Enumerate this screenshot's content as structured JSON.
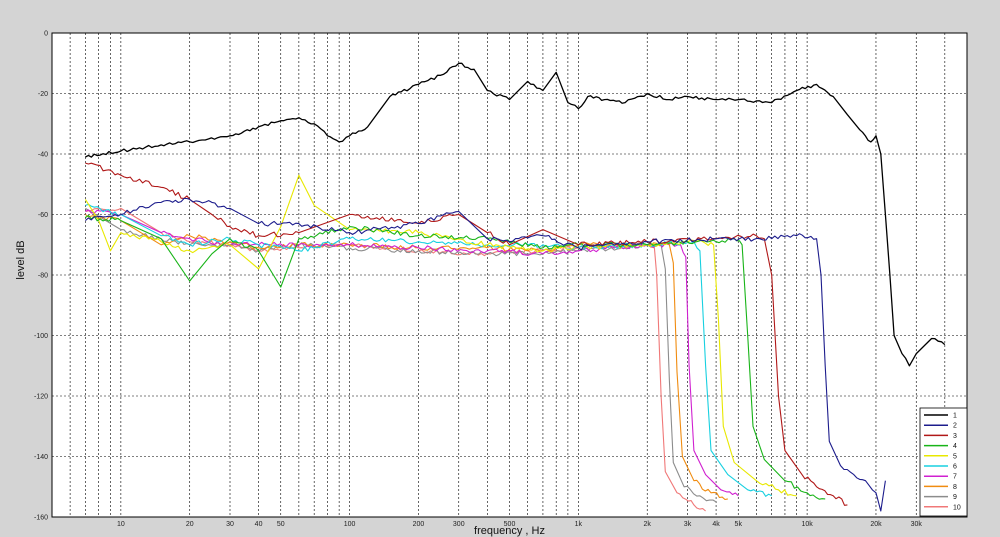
{
  "chart_data": {
    "type": "line",
    "title": "",
    "xlabel": "frequency , Hz",
    "ylabel": "level dB",
    "x_scale": "log",
    "xlim": [
      5,
      50000
    ],
    "ylim": [
      -160,
      0
    ],
    "grid": true,
    "legend_position": "bottom-right",
    "x_ticks": [
      {
        "value": 10,
        "label": "10"
      },
      {
        "value": 20,
        "label": "20"
      },
      {
        "value": 30,
        "label": "30"
      },
      {
        "value": 40,
        "label": "40"
      },
      {
        "value": 50,
        "label": "50"
      },
      {
        "value": 100,
        "label": "100"
      },
      {
        "value": 200,
        "label": "200"
      },
      {
        "value": 300,
        "label": "300"
      },
      {
        "value": 500,
        "label": "500"
      },
      {
        "value": 1000,
        "label": "1k"
      },
      {
        "value": 2000,
        "label": "2k"
      },
      {
        "value": 3000,
        "label": "3k"
      },
      {
        "value": 4000,
        "label": "4k"
      },
      {
        "value": 5000,
        "label": "5k"
      },
      {
        "value": 10000,
        "label": "10k"
      },
      {
        "value": 20000,
        "label": "20k"
      },
      {
        "value": 30000,
        "label": "30k"
      }
    ],
    "y_ticks": [
      {
        "value": 0,
        "label": "0"
      },
      {
        "value": -20,
        "label": "-20"
      },
      {
        "value": -40,
        "label": "-40"
      },
      {
        "value": -60,
        "label": "-60"
      },
      {
        "value": -80,
        "label": "-80"
      },
      {
        "value": -100,
        "label": "-100"
      },
      {
        "value": -120,
        "label": "-120"
      },
      {
        "value": -140,
        "label": "-140"
      },
      {
        "value": -160,
        "label": "-160"
      }
    ],
    "series": [
      {
        "name": "1",
        "color": "#000000",
        "points": [
          [
            7,
            -41
          ],
          [
            10,
            -39
          ],
          [
            15,
            -37
          ],
          [
            20,
            -36
          ],
          [
            30,
            -34
          ],
          [
            40,
            -31
          ],
          [
            50,
            -29
          ],
          [
            60,
            -28
          ],
          [
            70,
            -30
          ],
          [
            80,
            -34
          ],
          [
            90,
            -36
          ],
          [
            100,
            -34
          ],
          [
            120,
            -31
          ],
          [
            150,
            -21
          ],
          [
            200,
            -17
          ],
          [
            250,
            -14
          ],
          [
            300,
            -10
          ],
          [
            350,
            -12
          ],
          [
            400,
            -19
          ],
          [
            500,
            -22
          ],
          [
            600,
            -16
          ],
          [
            700,
            -19
          ],
          [
            800,
            -13
          ],
          [
            900,
            -23
          ],
          [
            1000,
            -25
          ],
          [
            1100,
            -21
          ],
          [
            1300,
            -22
          ],
          [
            1600,
            -23
          ],
          [
            2000,
            -20
          ],
          [
            2500,
            -22
          ],
          [
            3000,
            -21
          ],
          [
            4000,
            -22
          ],
          [
            5000,
            -22
          ],
          [
            7000,
            -23
          ],
          [
            9000,
            -19
          ],
          [
            11000,
            -17
          ],
          [
            13000,
            -21
          ],
          [
            15000,
            -27
          ],
          [
            17000,
            -32
          ],
          [
            19000,
            -36
          ],
          [
            20000,
            -34
          ],
          [
            21000,
            -40
          ],
          [
            22000,
            -60
          ],
          [
            23000,
            -80
          ],
          [
            24000,
            -100
          ],
          [
            26000,
            -106
          ],
          [
            28000,
            -110
          ],
          [
            30000,
            -106
          ],
          [
            35000,
            -101
          ],
          [
            40000,
            -103
          ]
        ]
      },
      {
        "name": "2",
        "color": "#1c1c8c",
        "points": [
          [
            7,
            -62
          ],
          [
            10,
            -60
          ],
          [
            15,
            -56
          ],
          [
            20,
            -55
          ],
          [
            25,
            -56
          ],
          [
            30,
            -58
          ],
          [
            40,
            -63
          ],
          [
            60,
            -63
          ],
          [
            100,
            -66
          ],
          [
            200,
            -63
          ],
          [
            300,
            -59
          ],
          [
            400,
            -68
          ],
          [
            500,
            -69
          ],
          [
            700,
            -67
          ],
          [
            1000,
            -71
          ],
          [
            2000,
            -69
          ],
          [
            4000,
            -68
          ],
          [
            7000,
            -68
          ],
          [
            9000,
            -67
          ],
          [
            11000,
            -68
          ],
          [
            11500,
            -80
          ],
          [
            12000,
            -110
          ],
          [
            12500,
            -135
          ],
          [
            14000,
            -143
          ],
          [
            16000,
            -146
          ],
          [
            18000,
            -148
          ],
          [
            20000,
            -152
          ],
          [
            21000,
            -158
          ],
          [
            22000,
            -148
          ]
        ]
      },
      {
        "name": "3",
        "color": "#b01818",
        "points": [
          [
            7,
            -43
          ],
          [
            10,
            -47
          ],
          [
            15,
            -51
          ],
          [
            20,
            -55
          ],
          [
            25,
            -60
          ],
          [
            30,
            -64
          ],
          [
            40,
            -67
          ],
          [
            60,
            -66
          ],
          [
            100,
            -60
          ],
          [
            200,
            -63
          ],
          [
            300,
            -60
          ],
          [
            400,
            -66
          ],
          [
            500,
            -70
          ],
          [
            700,
            -65
          ],
          [
            1000,
            -70
          ],
          [
            2000,
            -69
          ],
          [
            4000,
            -68
          ],
          [
            6000,
            -67
          ],
          [
            6500,
            -68
          ],
          [
            7000,
            -80
          ],
          [
            7500,
            -120
          ],
          [
            8000,
            -138
          ],
          [
            9500,
            -146
          ],
          [
            11000,
            -150
          ],
          [
            13000,
            -153
          ],
          [
            15000,
            -156
          ]
        ]
      },
      {
        "name": "4",
        "color": "#18b418",
        "points": [
          [
            7,
            -61
          ],
          [
            10,
            -62
          ],
          [
            15,
            -68
          ],
          [
            20,
            -82
          ],
          [
            25,
            -73
          ],
          [
            30,
            -68
          ],
          [
            40,
            -72
          ],
          [
            50,
            -84
          ],
          [
            60,
            -68
          ],
          [
            100,
            -64
          ],
          [
            200,
            -67
          ],
          [
            400,
            -68
          ],
          [
            700,
            -71
          ],
          [
            1000,
            -70
          ],
          [
            2000,
            -70
          ],
          [
            4000,
            -69
          ],
          [
            4800,
            -68
          ],
          [
            5200,
            -70
          ],
          [
            5500,
            -100
          ],
          [
            5800,
            -130
          ],
          [
            6500,
            -141
          ],
          [
            8000,
            -148
          ],
          [
            10000,
            -152
          ],
          [
            12000,
            -154
          ]
        ]
      },
      {
        "name": "5",
        "color": "#e8e800",
        "points": [
          [
            7,
            -55
          ],
          [
            8,
            -62
          ],
          [
            9,
            -72
          ],
          [
            10,
            -66
          ],
          [
            15,
            -69
          ],
          [
            20,
            -72
          ],
          [
            30,
            -70
          ],
          [
            40,
            -78
          ],
          [
            50,
            -64
          ],
          [
            60,
            -47
          ],
          [
            70,
            -57
          ],
          [
            100,
            -65
          ],
          [
            200,
            -66
          ],
          [
            400,
            -70
          ],
          [
            700,
            -72
          ],
          [
            1000,
            -71
          ],
          [
            2000,
            -70
          ],
          [
            3500,
            -69
          ],
          [
            3900,
            -70
          ],
          [
            4100,
            -95
          ],
          [
            4300,
            -130
          ],
          [
            4800,
            -142
          ],
          [
            6000,
            -148
          ],
          [
            7500,
            -151
          ],
          [
            9000,
            -153
          ]
        ]
      },
      {
        "name": "6",
        "color": "#18d0e0",
        "points": [
          [
            7,
            -57
          ],
          [
            10,
            -60
          ],
          [
            15,
            -67
          ],
          [
            20,
            -70
          ],
          [
            30,
            -68
          ],
          [
            40,
            -70
          ],
          [
            60,
            -72
          ],
          [
            100,
            -68
          ],
          [
            200,
            -69
          ],
          [
            400,
            -70
          ],
          [
            700,
            -70
          ],
          [
            1000,
            -71
          ],
          [
            2000,
            -70
          ],
          [
            3200,
            -69
          ],
          [
            3400,
            -72
          ],
          [
            3600,
            -110
          ],
          [
            3800,
            -138
          ],
          [
            4500,
            -146
          ],
          [
            5500,
            -151
          ],
          [
            7000,
            -153
          ]
        ]
      },
      {
        "name": "7",
        "color": "#d020d0",
        "points": [
          [
            7,
            -59
          ],
          [
            10,
            -60
          ],
          [
            15,
            -66
          ],
          [
            20,
            -68
          ],
          [
            30,
            -70
          ],
          [
            40,
            -70
          ],
          [
            60,
            -70
          ],
          [
            100,
            -70
          ],
          [
            200,
            -71
          ],
          [
            400,
            -72
          ],
          [
            700,
            -73
          ],
          [
            1000,
            -72
          ],
          [
            2000,
            -70
          ],
          [
            2800,
            -70
          ],
          [
            2950,
            -74
          ],
          [
            3050,
            -110
          ],
          [
            3200,
            -138
          ],
          [
            3600,
            -146
          ],
          [
            4200,
            -151
          ],
          [
            5000,
            -153
          ]
        ]
      },
      {
        "name": "8",
        "color": "#f08c10",
        "points": [
          [
            7,
            -60
          ],
          [
            10,
            -62
          ],
          [
            15,
            -70
          ],
          [
            20,
            -67
          ],
          [
            30,
            -69
          ],
          [
            40,
            -71
          ],
          [
            60,
            -70
          ],
          [
            100,
            -70
          ],
          [
            200,
            -71
          ],
          [
            400,
            -71
          ],
          [
            700,
            -72
          ],
          [
            1000,
            -70
          ],
          [
            2000,
            -70
          ],
          [
            2500,
            -70
          ],
          [
            2600,
            -76
          ],
          [
            2700,
            -112
          ],
          [
            2850,
            -140
          ],
          [
            3200,
            -148
          ],
          [
            3800,
            -152
          ],
          [
            4500,
            -154
          ]
        ]
      },
      {
        "name": "9",
        "color": "#8c8c8c",
        "points": [
          [
            7,
            -58
          ],
          [
            10,
            -65
          ],
          [
            15,
            -68
          ],
          [
            20,
            -70
          ],
          [
            30,
            -70
          ],
          [
            40,
            -72
          ],
          [
            60,
            -70
          ],
          [
            100,
            -71
          ],
          [
            200,
            -72
          ],
          [
            400,
            -73
          ],
          [
            700,
            -73
          ],
          [
            1000,
            -72
          ],
          [
            2000,
            -70
          ],
          [
            2300,
            -70
          ],
          [
            2400,
            -78
          ],
          [
            2500,
            -115
          ],
          [
            2600,
            -142
          ],
          [
            2900,
            -150
          ],
          [
            3400,
            -153
          ],
          [
            4000,
            -155
          ]
        ]
      },
      {
        "name": "10",
        "color": "#f07878",
        "points": [
          [
            7,
            -59
          ],
          [
            10,
            -58
          ],
          [
            15,
            -66
          ],
          [
            20,
            -69
          ],
          [
            30,
            -70
          ],
          [
            40,
            -72
          ],
          [
            60,
            -71
          ],
          [
            100,
            -70
          ],
          [
            200,
            -72
          ],
          [
            400,
            -73
          ],
          [
            700,
            -72
          ],
          [
            1000,
            -71
          ],
          [
            2000,
            -70
          ],
          [
            2150,
            -71
          ],
          [
            2200,
            -80
          ],
          [
            2300,
            -120
          ],
          [
            2400,
            -145
          ],
          [
            2700,
            -152
          ],
          [
            3200,
            -156
          ],
          [
            3600,
            -158
          ]
        ]
      }
    ]
  }
}
